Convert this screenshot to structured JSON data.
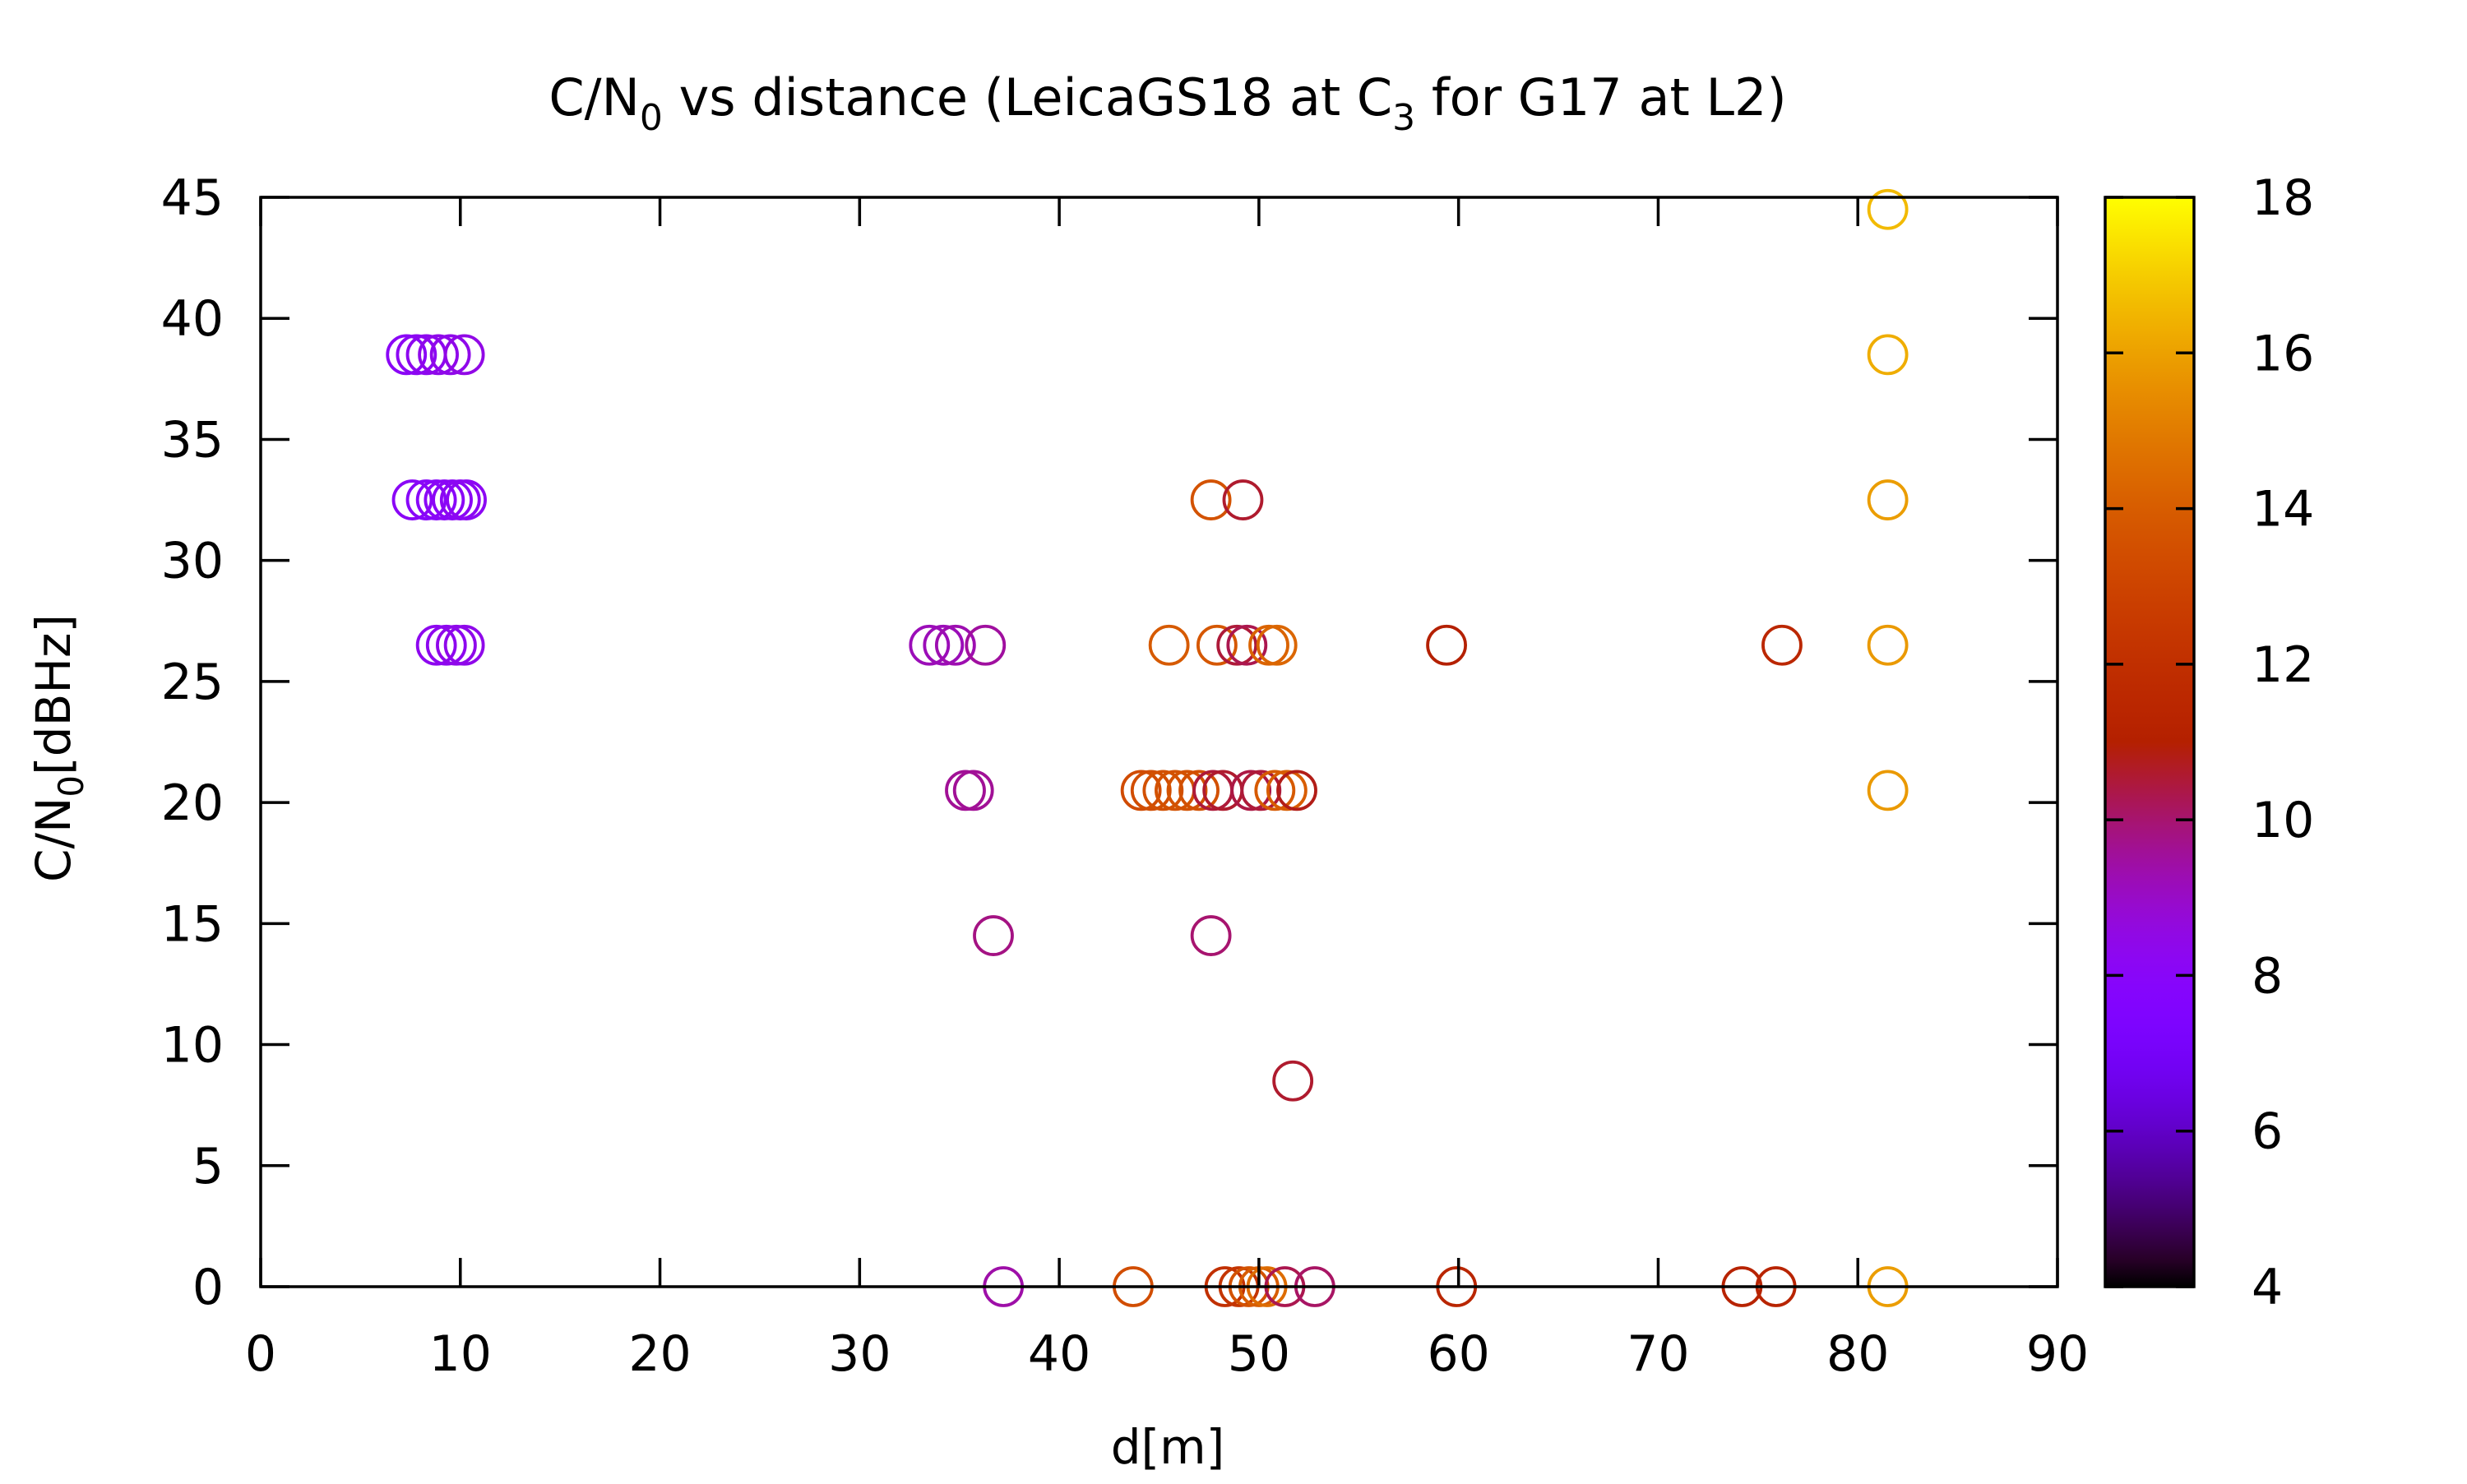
{
  "chart_data": {
    "type": "scatter",
    "title": {
      "prefix": "C/N",
      "sub1": "0",
      "mid": " vs distance (LeicaGS18 at C",
      "sub2": "3",
      "suffix": " for G17 at L2)"
    },
    "xlabel": "d[m]",
    "ylabel": {
      "prefix": "C/N",
      "sub": "0",
      "suffix": "[dBHz]"
    },
    "xlim": [
      0,
      90
    ],
    "ylim": [
      0,
      45
    ],
    "xticks": [
      0,
      10,
      20,
      30,
      40,
      50,
      60,
      70,
      80,
      90
    ],
    "yticks": [
      0,
      5,
      10,
      15,
      20,
      25,
      30,
      35,
      40,
      45
    ],
    "colorbar": {
      "range": [
        4,
        18
      ],
      "ticks": [
        4,
        6,
        8,
        10,
        12,
        14,
        16,
        18
      ],
      "palette": "gnuplot default (black-purple-red-orange-yellow)"
    },
    "marker": "open-circle",
    "grid": false,
    "legend": "none",
    "points": [
      {
        "x": 7.3,
        "y": 38.5,
        "c": 8.1
      },
      {
        "x": 7.8,
        "y": 38.5,
        "c": 8.2
      },
      {
        "x": 8.3,
        "y": 38.5,
        "c": 8.3
      },
      {
        "x": 8.9,
        "y": 38.5,
        "c": 8.4
      },
      {
        "x": 9.5,
        "y": 38.5,
        "c": 8.4
      },
      {
        "x": 10.2,
        "y": 38.5,
        "c": 8.5
      },
      {
        "x": 7.6,
        "y": 32.5,
        "c": 8.1
      },
      {
        "x": 8.3,
        "y": 32.5,
        "c": 8.0
      },
      {
        "x": 8.8,
        "y": 32.5,
        "c": 8.0
      },
      {
        "x": 9.2,
        "y": 32.5,
        "c": 8.1
      },
      {
        "x": 9.6,
        "y": 32.5,
        "c": 8.1
      },
      {
        "x": 10.0,
        "y": 32.5,
        "c": 8.2
      },
      {
        "x": 10.3,
        "y": 32.5,
        "c": 8.2
      },
      {
        "x": 8.8,
        "y": 26.5,
        "c": 8.3
      },
      {
        "x": 9.3,
        "y": 26.5,
        "c": 8.3
      },
      {
        "x": 9.8,
        "y": 26.5,
        "c": 8.4
      },
      {
        "x": 10.2,
        "y": 26.5,
        "c": 8.4
      },
      {
        "x": 33.5,
        "y": 26.5,
        "c": 9.2
      },
      {
        "x": 34.2,
        "y": 26.5,
        "c": 9.2
      },
      {
        "x": 34.8,
        "y": 26.5,
        "c": 9.3
      },
      {
        "x": 36.3,
        "y": 26.5,
        "c": 9.5
      },
      {
        "x": 35.3,
        "y": 20.5,
        "c": 9.6
      },
      {
        "x": 35.7,
        "y": 20.5,
        "c": 9.6
      },
      {
        "x": 36.7,
        "y": 14.5,
        "c": 9.8
      },
      {
        "x": 37.2,
        "y": 0,
        "c": 9.4
      },
      {
        "x": 47.6,
        "y": 32.5,
        "c": 13.6
      },
      {
        "x": 49.2,
        "y": 32.5,
        "c": 10.6
      },
      {
        "x": 45.5,
        "y": 26.5,
        "c": 13.9
      },
      {
        "x": 47.9,
        "y": 26.5,
        "c": 13.8
      },
      {
        "x": 48.9,
        "y": 26.5,
        "c": 10.5
      },
      {
        "x": 49.4,
        "y": 26.5,
        "c": 10.3
      },
      {
        "x": 50.5,
        "y": 26.5,
        "c": 14.2
      },
      {
        "x": 50.9,
        "y": 26.5,
        "c": 14.3
      },
      {
        "x": 59.4,
        "y": 26.5,
        "c": 11.0
      },
      {
        "x": 76.2,
        "y": 26.5,
        "c": 11.5
      },
      {
        "x": 44.1,
        "y": 20.5,
        "c": 13.3
      },
      {
        "x": 44.6,
        "y": 20.5,
        "c": 13.4
      },
      {
        "x": 45.2,
        "y": 20.5,
        "c": 13.5
      },
      {
        "x": 45.8,
        "y": 20.5,
        "c": 13.6
      },
      {
        "x": 46.4,
        "y": 20.5,
        "c": 13.6
      },
      {
        "x": 47.0,
        "y": 20.5,
        "c": 13.5
      },
      {
        "x": 47.7,
        "y": 20.5,
        "c": 10.5
      },
      {
        "x": 48.2,
        "y": 20.5,
        "c": 10.6
      },
      {
        "x": 49.6,
        "y": 20.5,
        "c": 10.4
      },
      {
        "x": 50.1,
        "y": 20.5,
        "c": 10.5
      },
      {
        "x": 50.8,
        "y": 20.5,
        "c": 13.9
      },
      {
        "x": 51.4,
        "y": 20.5,
        "c": 14.0
      },
      {
        "x": 51.9,
        "y": 20.5,
        "c": 10.8
      },
      {
        "x": 47.6,
        "y": 14.5,
        "c": 10.0
      },
      {
        "x": 51.7,
        "y": 8.5,
        "c": 10.6
      },
      {
        "x": 43.7,
        "y": 0,
        "c": 13.4
      },
      {
        "x": 48.3,
        "y": 0,
        "c": 12.0
      },
      {
        "x": 49.0,
        "y": 0,
        "c": 12.3
      },
      {
        "x": 49.5,
        "y": 0,
        "c": 13.6
      },
      {
        "x": 50.0,
        "y": 0,
        "c": 14.0
      },
      {
        "x": 50.4,
        "y": 0,
        "c": 14.5
      },
      {
        "x": 51.3,
        "y": 0,
        "c": 10.3
      },
      {
        "x": 52.8,
        "y": 0,
        "c": 10.1
      },
      {
        "x": 59.9,
        "y": 0,
        "c": 11.4
      },
      {
        "x": 74.2,
        "y": 0,
        "c": 11.2
      },
      {
        "x": 75.9,
        "y": 0,
        "c": 11.3
      },
      {
        "x": 81.5,
        "y": 44.5,
        "c": 16.6
      },
      {
        "x": 81.5,
        "y": 38.5,
        "c": 16.3
      },
      {
        "x": 81.5,
        "y": 32.5,
        "c": 15.9
      },
      {
        "x": 81.5,
        "y": 26.5,
        "c": 15.8
      },
      {
        "x": 81.5,
        "y": 20.5,
        "c": 15.8
      },
      {
        "x": 81.5,
        "y": 0,
        "c": 15.9
      }
    ]
  }
}
